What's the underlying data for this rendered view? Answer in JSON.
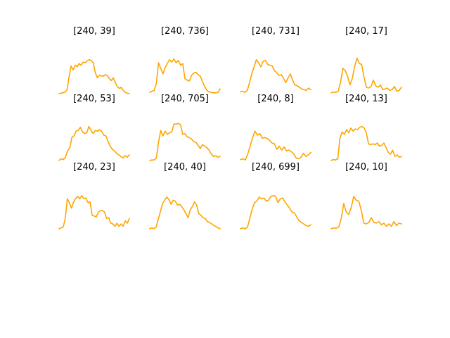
{
  "figure": {
    "line_color": "#ffa500",
    "background": "#ffffff"
  },
  "chart_data": [
    {
      "type": "line",
      "title": "[240, 39]",
      "values": [
        0.02,
        0.03,
        0.04,
        0.06,
        0.12,
        0.45,
        0.72,
        0.62,
        0.74,
        0.7,
        0.78,
        0.74,
        0.82,
        0.8,
        0.85,
        0.88,
        0.86,
        0.8,
        0.56,
        0.42,
        0.48,
        0.47,
        0.46,
        0.5,
        0.48,
        0.4,
        0.35,
        0.42,
        0.3,
        0.2,
        0.15,
        0.18,
        0.1,
        0.05,
        0.03,
        0.02
      ]
    },
    {
      "type": "line",
      "title": "[240, 736]",
      "values": [
        0.05,
        0.08,
        0.1,
        0.28,
        0.8,
        0.66,
        0.52,
        0.68,
        0.78,
        0.88,
        0.82,
        0.9,
        0.8,
        0.86,
        0.74,
        0.78,
        0.4,
        0.36,
        0.34,
        0.48,
        0.54,
        0.56,
        0.5,
        0.46,
        0.32,
        0.2,
        0.1,
        0.06,
        0.05,
        0.04,
        0.04,
        0.05,
        0.14
      ]
    },
    {
      "type": "line",
      "title": "[240, 731]",
      "values": [
        0.06,
        0.08,
        0.05,
        0.1,
        0.3,
        0.52,
        0.7,
        0.88,
        0.8,
        0.7,
        0.84,
        0.86,
        0.76,
        0.74,
        0.72,
        0.6,
        0.55,
        0.48,
        0.5,
        0.4,
        0.3,
        0.42,
        0.52,
        0.36,
        0.24,
        0.22,
        0.18,
        0.14,
        0.12,
        0.1,
        0.16,
        0.12
      ]
    },
    {
      "type": "line",
      "title": "[240, 17]",
      "values": [
        0.04,
        0.06,
        0.05,
        0.08,
        0.3,
        0.66,
        0.6,
        0.46,
        0.24,
        0.4,
        0.7,
        0.92,
        0.78,
        0.76,
        0.44,
        0.18,
        0.16,
        0.2,
        0.36,
        0.22,
        0.18,
        0.24,
        0.12,
        0.14,
        0.16,
        0.1,
        0.12,
        0.2,
        0.08,
        0.1,
        0.18
      ]
    },
    {
      "type": "line",
      "title": "[240, 53]",
      "values": [
        0.04,
        0.08,
        0.06,
        0.12,
        0.28,
        0.36,
        0.62,
        0.66,
        0.78,
        0.8,
        0.88,
        0.76,
        0.72,
        0.74,
        0.9,
        0.8,
        0.72,
        0.8,
        0.78,
        0.82,
        0.78,
        0.68,
        0.66,
        0.52,
        0.4,
        0.32,
        0.28,
        0.22,
        0.18,
        0.14,
        0.1,
        0.16,
        0.12,
        0.18
      ]
    },
    {
      "type": "line",
      "title": "[240, 705]",
      "values": [
        0.04,
        0.05,
        0.05,
        0.1,
        0.5,
        0.8,
        0.66,
        0.78,
        0.7,
        0.74,
        0.76,
        0.96,
        0.96,
        0.98,
        0.94,
        0.7,
        0.72,
        0.64,
        0.62,
        0.58,
        0.52,
        0.5,
        0.42,
        0.34,
        0.44,
        0.4,
        0.36,
        0.3,
        0.2,
        0.14,
        0.16,
        0.12,
        0.14
      ]
    },
    {
      "type": "line",
      "title": "[240, 8]",
      "values": [
        0.06,
        0.08,
        0.05,
        0.2,
        0.4,
        0.62,
        0.78,
        0.68,
        0.72,
        0.6,
        0.62,
        0.6,
        0.55,
        0.48,
        0.46,
        0.32,
        0.4,
        0.3,
        0.38,
        0.28,
        0.3,
        0.26,
        0.2,
        0.1,
        0.08,
        0.12,
        0.22,
        0.14,
        0.18,
        0.24
      ]
    },
    {
      "type": "line",
      "title": "[240, 13]",
      "values": [
        0.04,
        0.06,
        0.05,
        0.08,
        0.6,
        0.76,
        0.7,
        0.82,
        0.74,
        0.86,
        0.78,
        0.84,
        0.82,
        0.88,
        0.9,
        0.86,
        0.74,
        0.46,
        0.44,
        0.46,
        0.44,
        0.48,
        0.4,
        0.42,
        0.48,
        0.36,
        0.24,
        0.2,
        0.3,
        0.14,
        0.18,
        0.12,
        0.14
      ]
    },
    {
      "type": "line",
      "title": "[240, 23]",
      "values": [
        0.04,
        0.06,
        0.08,
        0.3,
        0.8,
        0.7,
        0.56,
        0.72,
        0.8,
        0.86,
        0.8,
        0.88,
        0.8,
        0.82,
        0.7,
        0.72,
        0.38,
        0.36,
        0.34,
        0.46,
        0.5,
        0.5,
        0.46,
        0.3,
        0.32,
        0.18,
        0.16,
        0.1,
        0.18,
        0.1,
        0.16,
        0.1,
        0.24,
        0.18,
        0.3
      ]
    },
    {
      "type": "line",
      "title": "[240, 40]",
      "values": [
        0.04,
        0.06,
        0.04,
        0.08,
        0.28,
        0.48,
        0.68,
        0.76,
        0.84,
        0.78,
        0.66,
        0.76,
        0.74,
        0.64,
        0.66,
        0.6,
        0.52,
        0.42,
        0.32,
        0.52,
        0.6,
        0.72,
        0.64,
        0.42,
        0.38,
        0.32,
        0.3,
        0.22,
        0.2,
        0.16,
        0.12,
        0.1,
        0.06,
        0.04
      ]
    },
    {
      "type": "line",
      "title": "[240, 699]",
      "values": [
        0.04,
        0.06,
        0.04,
        0.08,
        0.3,
        0.54,
        0.7,
        0.74,
        0.84,
        0.8,
        0.82,
        0.74,
        0.76,
        0.86,
        0.88,
        0.86,
        0.7,
        0.8,
        0.82,
        0.72,
        0.64,
        0.56,
        0.46,
        0.44,
        0.34,
        0.24,
        0.2,
        0.16,
        0.12,
        0.1,
        0.14
      ]
    },
    {
      "type": "line",
      "title": "[240, 10]",
      "values": [
        0.04,
        0.06,
        0.05,
        0.08,
        0.3,
        0.68,
        0.46,
        0.4,
        0.58,
        0.86,
        0.76,
        0.74,
        0.5,
        0.18,
        0.16,
        0.2,
        0.32,
        0.2,
        0.18,
        0.22,
        0.14,
        0.18,
        0.1,
        0.16,
        0.1,
        0.22,
        0.12,
        0.18,
        0.16
      ]
    }
  ]
}
